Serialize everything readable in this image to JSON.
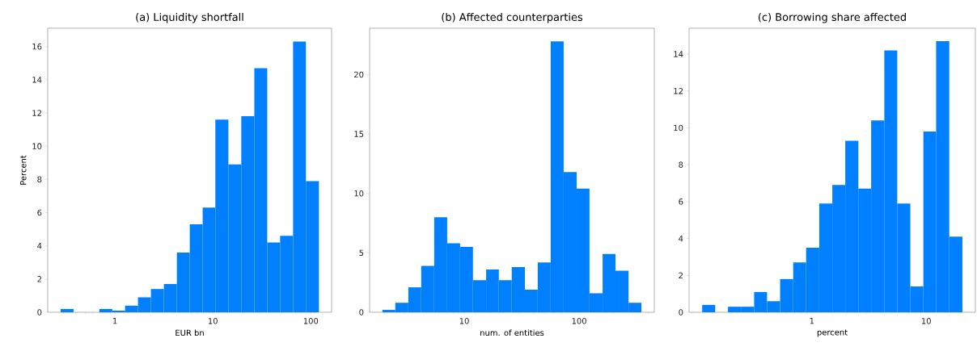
{
  "chart_data": [
    {
      "type": "histogram",
      "title": "(a) Liquidity shortfall",
      "xlabel": "EUR bn",
      "ylabel": "Percent",
      "color": "#0080ff",
      "log": "x",
      "bins": [
        0.279,
        0.378,
        0.512,
        0.693,
        0.94,
        1.27,
        1.72,
        2.33,
        3.16,
        4.29,
        5.81,
        7.87,
        10.6,
        14.4,
        19.5,
        26.5,
        35.9,
        48.6,
        65.9,
        89.1,
        121
      ],
      "values": [
        0.2,
        0,
        0,
        0.2,
        0.1,
        0.4,
        0.9,
        1.4,
        1.7,
        3.6,
        5.3,
        6.3,
        11.6,
        8.9,
        11.8,
        14.7,
        4.2,
        4.6,
        16.3,
        7.9
      ],
      "xlim": [
        0.206,
        163
      ],
      "ylim": [
        0,
        17.1
      ],
      "xticks": [
        1,
        10,
        100
      ],
      "yticks": [
        0,
        2,
        4,
        6,
        8,
        10,
        12,
        14,
        16
      ]
    },
    {
      "type": "histogram",
      "title": "(b) Affected counterparties",
      "xlabel": "num. of entities",
      "color": "#0080ff",
      "log": "x",
      "bins": [
        1.94,
        2.51,
        3.26,
        4.22,
        5.47,
        7.1,
        9.2,
        11.9,
        15.5,
        20.0,
        25.9,
        33.7,
        43.6,
        56.5,
        73.3,
        95.1,
        123,
        160,
        207,
        269,
        348
      ],
      "values": [
        0.2,
        0.8,
        2.1,
        3.9,
        8.0,
        5.8,
        5.5,
        2.7,
        3.6,
        2.7,
        3.8,
        1.9,
        4.2,
        22.8,
        11.8,
        10.4,
        1.6,
        4.9,
        3.5,
        0.8
      ],
      "xlim": [
        1.5,
        451
      ],
      "ylim": [
        0,
        23.9
      ],
      "xticks": [
        10,
        100
      ],
      "yticks": [
        0,
        5,
        10,
        15,
        20
      ]
    },
    {
      "type": "histogram",
      "title": "(c) Borrowing share affected",
      "xlabel": "percent",
      "color": "#0080ff",
      "log": "x",
      "bins": [
        0.11,
        0.143,
        0.185,
        0.24,
        0.313,
        0.406,
        0.528,
        0.687,
        0.891,
        1.16,
        1.51,
        1.96,
        2.55,
        3.3,
        4.3,
        5.58,
        7.26,
        9.44,
        12.2,
        15.9,
        20.7
      ],
      "values": [
        0.4,
        0,
        0.3,
        0.3,
        1.1,
        0.6,
        1.8,
        2.7,
        3.5,
        5.9,
        6.9,
        9.3,
        6.7,
        10.4,
        14.2,
        5.9,
        1.4,
        9.8,
        14.7,
        4.1
      ],
      "xlim": [
        0.0845,
        26.9
      ],
      "ylim": [
        0,
        15.4
      ],
      "xticks": [
        1,
        10
      ],
      "yticks": [
        0,
        2,
        4,
        6,
        8,
        10,
        12,
        14
      ]
    }
  ]
}
